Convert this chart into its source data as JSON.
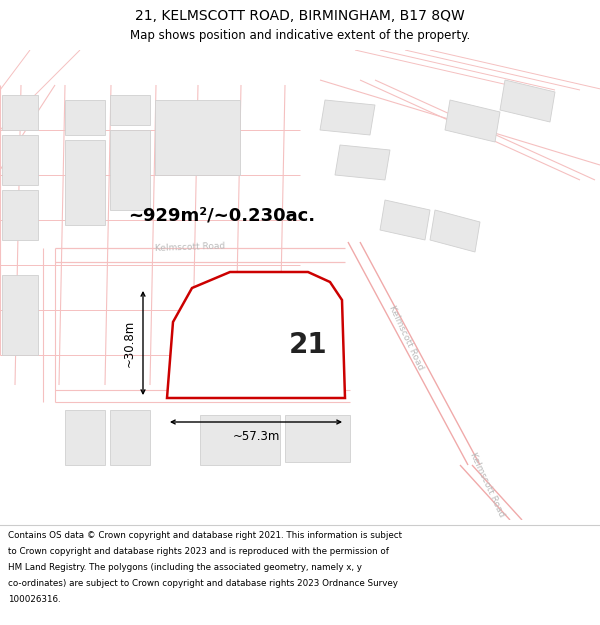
{
  "title_line1": "21, KELMSCOTT ROAD, BIRMINGHAM, B17 8QW",
  "title_line2": "Map shows position and indicative extent of the property.",
  "area_label": "~929m²/~0.230ac.",
  "property_number": "21",
  "width_label": "~57.3m",
  "height_label": "~30.8m",
  "road_label1": "Kelmscott Road",
  "road_label2": "Kelmscott Road",
  "road_label3": "Kelmscott Road",
  "footer_lines": [
    "Contains OS data © Crown copyright and database right 2021. This information is subject",
    "to Crown copyright and database rights 2023 and is reproduced with the permission of",
    "HM Land Registry. The polygons (including the associated geometry, namely x, y",
    "co-ordinates) are subject to Crown copyright and database rights 2023 Ordnance Survey",
    "100026316."
  ],
  "map_bg": "#ffffff",
  "road_line_color": "#f5c0c0",
  "road_line_major": "#f0aaaa",
  "building_fill": "#e8e8e8",
  "building_edge": "#d0d0d0",
  "property_fill": "#ffffff",
  "property_edge": "#cc0000",
  "property_lw": 1.8,
  "dim_color": "#000000",
  "label_color": "#222222",
  "road_text_color": "#bbbbbb",
  "title_fs": 10,
  "subtitle_fs": 8.5,
  "area_fs": 13,
  "propnum_fs": 20,
  "dim_fs": 8.5,
  "road_fs": 6.5,
  "footer_fs": 6.3
}
